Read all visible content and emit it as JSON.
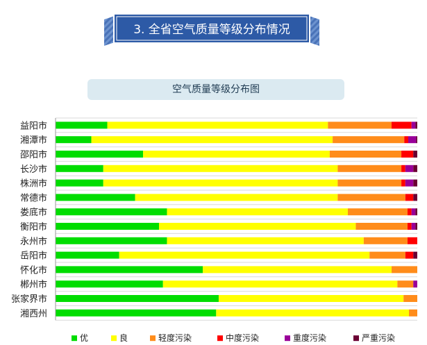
{
  "header": {
    "title": "3. 全省空气质量等级分布情况"
  },
  "chart_data": {
    "type": "bar",
    "orientation": "horizontal",
    "stacked": true,
    "title": "空气质量等级分布图",
    "xlabel": "",
    "ylabel": "",
    "xlim": [
      0,
      1
    ],
    "grid": true,
    "legend_position": "bottom",
    "categories": [
      "益阳市",
      "湘潭市",
      "邵阳市",
      "长沙市",
      "株洲市",
      "常德市",
      "娄底市",
      "衡阳市",
      "永州市",
      "岳阳市",
      "怀化市",
      "郴州市",
      "张家界市",
      "湘西州"
    ],
    "series": [
      {
        "name": "优",
        "color": "#00dd00",
        "values": [
          0.143,
          0.099,
          0.242,
          0.132,
          0.132,
          0.22,
          0.308,
          0.286,
          0.308,
          0.176,
          0.407,
          0.297,
          0.451,
          0.444
        ]
      },
      {
        "name": "良",
        "color": "#ffff00",
        "values": [
          0.61,
          0.667,
          0.516,
          0.648,
          0.648,
          0.56,
          0.5,
          0.544,
          0.544,
          0.692,
          0.522,
          0.648,
          0.511,
          0.533
        ]
      },
      {
        "name": "轻度污染",
        "color": "#ff8c1a",
        "values": [
          0.176,
          0.198,
          0.198,
          0.176,
          0.176,
          0.187,
          0.165,
          0.143,
          0.121,
          0.099,
          0.071,
          0.044,
          0.038,
          0.023
        ]
      },
      {
        "name": "中度污染",
        "color": "#ff0000",
        "values": [
          0.055,
          0.011,
          0.033,
          0.011,
          0.011,
          0.022,
          0.011,
          0.011,
          0.027,
          0.022,
          0.0,
          0.0,
          0.0,
          0.0
        ]
      },
      {
        "name": "重度污染",
        "color": "#990099",
        "values": [
          0.011,
          0.022,
          0.0,
          0.022,
          0.022,
          0.0,
          0.011,
          0.011,
          0.0,
          0.0,
          0.0,
          0.011,
          0.0,
          0.0
        ]
      },
      {
        "name": "严重污染",
        "color": "#6b0033",
        "values": [
          0.005,
          0.003,
          0.011,
          0.011,
          0.011,
          0.011,
          0.005,
          0.005,
          0.0,
          0.011,
          0.0,
          0.0,
          0.0,
          0.0
        ]
      }
    ]
  }
}
